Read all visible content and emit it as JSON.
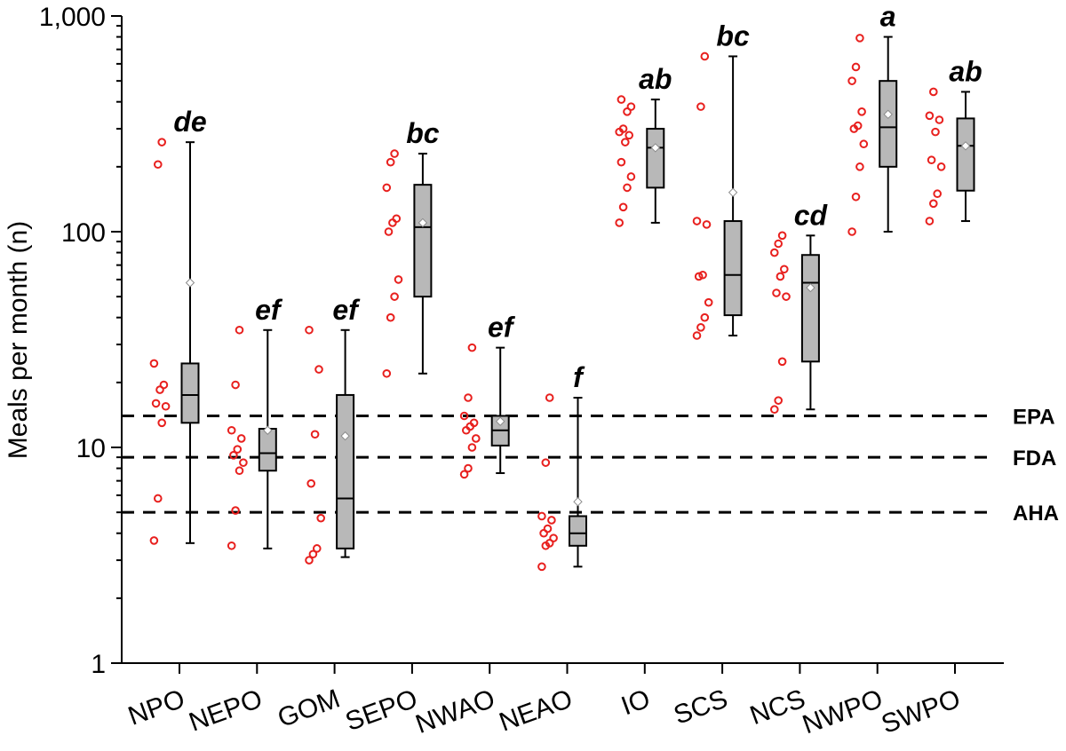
{
  "chart_data": {
    "type": "box",
    "title": "",
    "xlabel": "",
    "ylabel": "Meals per month (n)",
    "yscale": "log",
    "ylim": [
      1,
      1000
    ],
    "yticks": [
      1,
      10,
      100,
      1000
    ],
    "ytick_labels": [
      "1",
      "10",
      "100",
      "1,000"
    ],
    "reference_lines": [
      {
        "label": "EPA",
        "value": 14
      },
      {
        "label": "FDA",
        "value": 9
      },
      {
        "label": "AHA",
        "value": 5
      }
    ],
    "categories": [
      {
        "name": "NPO",
        "group": "de",
        "whisker_low": 3.6,
        "q1": 13,
        "median": 17.5,
        "q3": 24.5,
        "whisker_high": 260,
        "mean": 58,
        "points": [
          3.7,
          5.8,
          13,
          15.5,
          16,
          18.5,
          19.5,
          24.5,
          205,
          260
        ]
      },
      {
        "name": "NEPO",
        "group": "ef",
        "whisker_low": 3.4,
        "q1": 7.8,
        "median": 9.4,
        "q3": 12.2,
        "whisker_high": 35,
        "mean": 12,
        "points": [
          3.5,
          5.1,
          7.8,
          8.5,
          9.2,
          9.8,
          11,
          12,
          19.5,
          35
        ]
      },
      {
        "name": "GOM",
        "group": "ef",
        "whisker_low": 3.1,
        "q1": 3.4,
        "median": 5.8,
        "q3": 17.5,
        "whisker_high": 35,
        "mean": 11.3,
        "points": [
          3.0,
          3.2,
          3.4,
          4.7,
          6.8,
          11.5,
          23,
          35
        ]
      },
      {
        "name": "SEPO",
        "group": "bc",
        "whisker_low": 22,
        "q1": 50,
        "median": 105,
        "q3": 165,
        "whisker_high": 230,
        "mean": 110,
        "points": [
          22,
          40,
          50,
          60,
          100,
          110,
          115,
          160,
          210,
          230
        ]
      },
      {
        "name": "NWAO",
        "group": "ef",
        "whisker_low": 7.6,
        "q1": 10.2,
        "median": 12,
        "q3": 14,
        "whisker_high": 29,
        "mean": 13.2,
        "points": [
          7.5,
          8,
          10,
          11,
          12,
          12.5,
          13,
          14,
          17,
          29
        ]
      },
      {
        "name": "NEAO",
        "group": "f",
        "whisker_low": 2.8,
        "q1": 3.5,
        "median": 4.0,
        "q3": 4.8,
        "whisker_high": 17,
        "mean": 5.6,
        "points": [
          2.8,
          3.5,
          3.6,
          3.8,
          4.0,
          4.2,
          4.6,
          4.8,
          8.5,
          17
        ]
      },
      {
        "name": "IO",
        "group": "ab",
        "whisker_low": 110,
        "q1": 160,
        "median": 245,
        "q3": 300,
        "whisker_high": 410,
        "mean": 245,
        "points": [
          110,
          130,
          160,
          180,
          210,
          260,
          280,
          290,
          300,
          360,
          380,
          410
        ]
      },
      {
        "name": "SCS",
        "group": "bc",
        "whisker_low": 33,
        "q1": 41,
        "median": 63,
        "q3": 112,
        "whisker_high": 650,
        "mean": 152,
        "points": [
          33,
          36,
          40,
          47,
          62,
          63,
          108,
          112,
          380,
          650
        ]
      },
      {
        "name": "NCS",
        "group": "cd",
        "whisker_low": 15,
        "q1": 25,
        "median": 58,
        "q3": 78,
        "whisker_high": 96,
        "mean": 55,
        "points": [
          15,
          16.5,
          25,
          50,
          52,
          62,
          67,
          80,
          88,
          96
        ]
      },
      {
        "name": "NWPO",
        "group": "a",
        "whisker_low": 100,
        "q1": 200,
        "median": 305,
        "q3": 500,
        "whisker_high": 800,
        "mean": 350,
        "points": [
          100,
          145,
          200,
          255,
          300,
          310,
          360,
          500,
          580,
          790
        ]
      },
      {
        "name": "SWPO",
        "group": "ab",
        "whisker_low": 112,
        "q1": 155,
        "median": 250,
        "q3": 335,
        "whisker_high": 445,
        "mean": 250,
        "points": [
          112,
          135,
          150,
          200,
          215,
          290,
          330,
          345,
          445
        ]
      }
    ]
  }
}
